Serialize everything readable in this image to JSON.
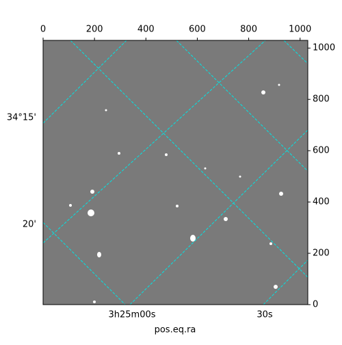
{
  "chart_data": {
    "type": "image",
    "xlabel": "pos.eq.ra",
    "xlim": [
      0,
      1030
    ],
    "xticks": [
      0,
      200,
      400,
      600,
      800,
      1000
    ],
    "ylim": [
      0,
      1030
    ],
    "yticks": [
      0,
      200,
      400,
      600,
      800,
      1000
    ],
    "ra_tick_labels": [
      "3h25m00s",
      "30s"
    ],
    "dec_tick_labels": [
      "34°15'",
      "20'"
    ],
    "grid_color": "#00e5e5"
  }
}
